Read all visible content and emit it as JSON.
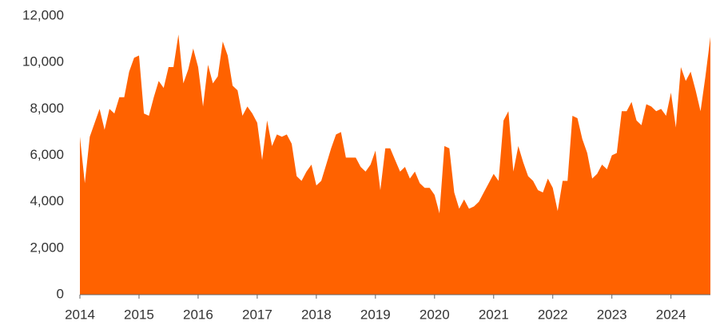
{
  "chart_data": {
    "type": "area",
    "color": "#ff6200",
    "x": [
      2014,
      2014.083,
      2014.167,
      2014.25,
      2014.333,
      2014.417,
      2014.5,
      2014.583,
      2014.667,
      2014.75,
      2014.833,
      2014.917,
      2015,
      2015.083,
      2015.167,
      2015.25,
      2015.333,
      2015.417,
      2015.5,
      2015.583,
      2015.667,
      2015.75,
      2015.833,
      2015.917,
      2016,
      2016.083,
      2016.167,
      2016.25,
      2016.333,
      2016.417,
      2016.5,
      2016.583,
      2016.667,
      2016.75,
      2016.833,
      2016.917,
      2017,
      2017.083,
      2017.167,
      2017.25,
      2017.333,
      2017.417,
      2017.5,
      2017.583,
      2017.667,
      2017.75,
      2017.833,
      2017.917,
      2018,
      2018.083,
      2018.167,
      2018.25,
      2018.333,
      2018.417,
      2018.5,
      2018.583,
      2018.667,
      2018.75,
      2018.833,
      2018.917,
      2019,
      2019.083,
      2019.167,
      2019.25,
      2019.333,
      2019.417,
      2019.5,
      2019.583,
      2019.667,
      2019.75,
      2019.833,
      2019.917,
      2020,
      2020.083,
      2020.167,
      2020.25,
      2020.333,
      2020.417,
      2020.5,
      2020.583,
      2020.667,
      2020.75,
      2020.833,
      2020.917,
      2021,
      2021.083,
      2021.167,
      2021.25,
      2021.333,
      2021.417,
      2021.5,
      2021.583,
      2021.667,
      2021.75,
      2021.833,
      2021.917,
      2022,
      2022.083,
      2022.167,
      2022.25,
      2022.333,
      2022.417,
      2022.5,
      2022.583,
      2022.667,
      2022.75,
      2022.833,
      2022.917,
      2023,
      2023.083,
      2023.167,
      2023.25,
      2023.333,
      2023.417,
      2023.5,
      2023.583,
      2023.667,
      2023.75,
      2023.833,
      2023.917,
      2024,
      2024.083,
      2024.167,
      2024.25,
      2024.333,
      2024.417,
      2024.5,
      2024.583,
      2024.667
    ],
    "values": [
      6800,
      4800,
      6800,
      7400,
      8000,
      7100,
      8000,
      7800,
      8500,
      8500,
      9600,
      10200,
      10300,
      7800,
      7700,
      8500,
      9200,
      8900,
      9800,
      9800,
      11200,
      9100,
      9700,
      10600,
      9800,
      8100,
      9900,
      9100,
      9400,
      10900,
      10300,
      9000,
      8800,
      7700,
      8100,
      7800,
      7400,
      5800,
      7500,
      6400,
      6900,
      6800,
      6900,
      6500,
      5100,
      4900,
      5300,
      5600,
      4700,
      4900,
      5600,
      6300,
      6900,
      7000,
      5900,
      5900,
      5900,
      5500,
      5300,
      5600,
      6200,
      4500,
      6300,
      6300,
      5800,
      5300,
      5500,
      5000,
      5300,
      4800,
      4600,
      4600,
      4300,
      3500,
      6400,
      6300,
      4400,
      3700,
      4100,
      3700,
      3800,
      4000,
      4400,
      4800,
      5200,
      4900,
      7500,
      7900,
      5300,
      6400,
      5700,
      5100,
      4900,
      4500,
      4400,
      5000,
      4600,
      3600,
      4900,
      4900,
      7700,
      7600,
      6700,
      6100,
      5000,
      5200,
      5600,
      5400,
      6000,
      6100,
      7900,
      7900,
      8300,
      7500,
      7300,
      8200,
      8100,
      7900,
      8000,
      7700,
      8700,
      7200,
      9800,
      9200,
      9600,
      8800,
      7900,
      9400,
      11100
    ],
    "xlim": [
      2014,
      2024.667
    ],
    "xticks": [
      2014,
      2015,
      2016,
      2017,
      2018,
      2019,
      2020,
      2021,
      2022,
      2023,
      2024
    ],
    "ylim": [
      0,
      12000
    ],
    "yticks": [
      0,
      {
        "value": 2000,
        "label": "2,000"
      },
      {
        "value": 4000,
        "label": "4,000"
      },
      {
        "value": 6000,
        "label": "6,000"
      },
      {
        "value": 8000,
        "label": "8,000"
      },
      {
        "value": 10000,
        "label": "10,000"
      },
      {
        "value": 12000,
        "label": "12,000"
      }
    ]
  }
}
